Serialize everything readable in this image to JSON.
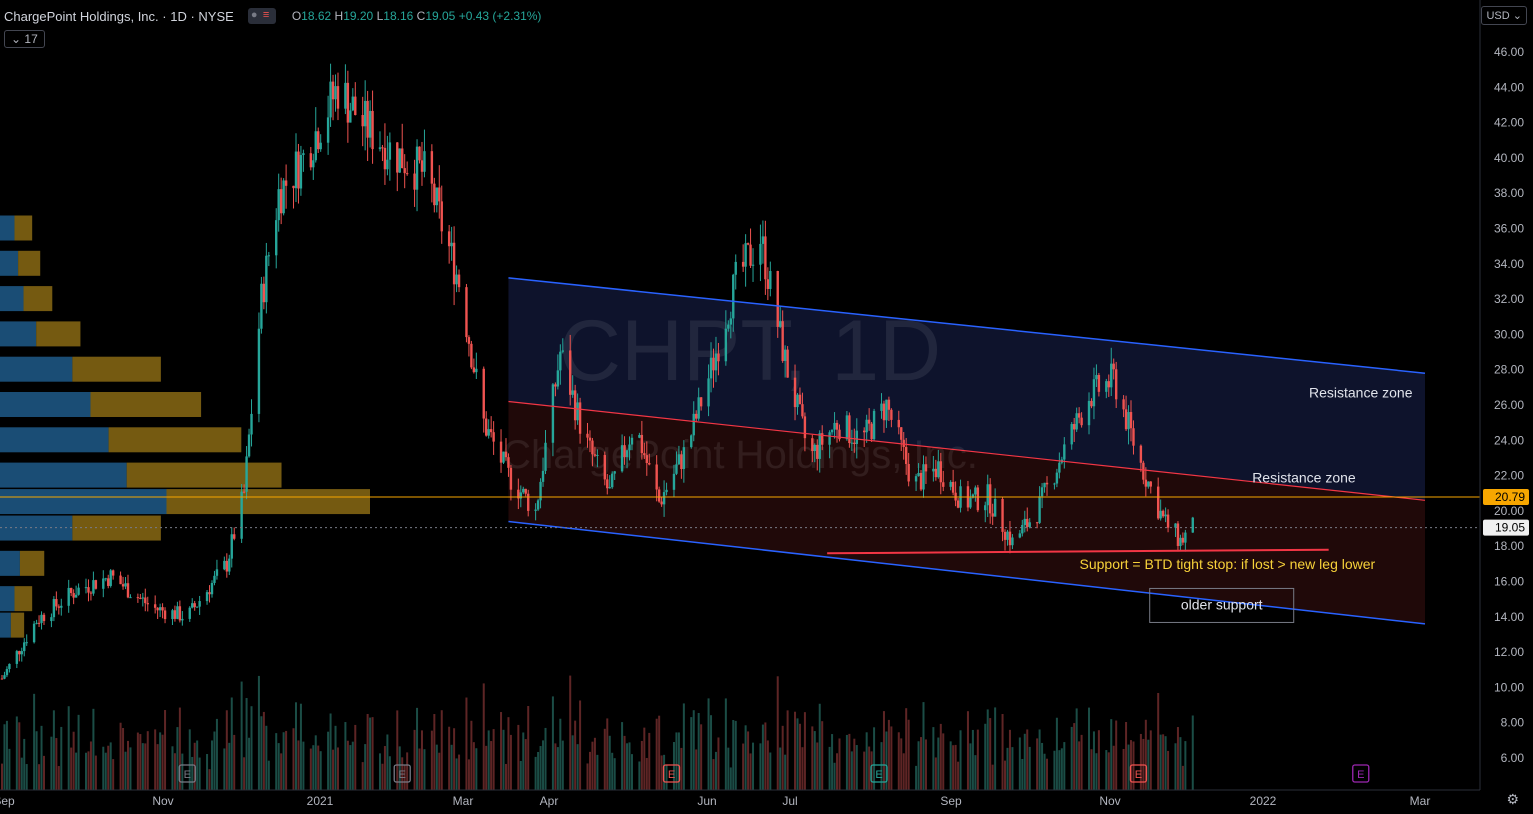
{
  "header": {
    "symbol_name": "ChargePoint Holdings, Inc.",
    "interval": "1D",
    "exchange": "NYSE",
    "open_label": "O",
    "open": "18.62",
    "high_label": "H",
    "high": "19.20",
    "low_label": "L",
    "low": "18.16",
    "close_label": "C",
    "close": "19.05",
    "change": "+0.43 (+2.31%)",
    "volume_indicator": "17"
  },
  "currency": "USD",
  "watermark": {
    "symbol": "CHPT, 1D",
    "name": "ChargePoint Holdings, Inc."
  },
  "colors": {
    "up": "#26a69a",
    "down": "#ef5350",
    "channel": "#2962ff",
    "support": "#f23645",
    "last_price": "#f7a600",
    "annotation": "#f7d23a",
    "bg": "#000000"
  },
  "chart_data": {
    "type": "candlestick",
    "x_axis_labels": [
      "Sep",
      "Nov",
      "2021",
      "Mar",
      "Apr",
      "Jun",
      "Jul",
      "Sep",
      "Nov",
      "2022",
      "Mar"
    ],
    "y_ticks": [
      "46.00",
      "44.00",
      "42.00",
      "40.00",
      "38.00",
      "36.00",
      "34.00",
      "32.00",
      "30.00",
      "28.00",
      "26.00",
      "24.00",
      "22.00",
      "20.00",
      "18.00",
      "16.00",
      "14.00",
      "12.00",
      "10.00",
      "8.00",
      "6.00"
    ],
    "ylim": [
      5,
      48
    ],
    "last_price_badge": "19.05",
    "resistance_price_badge": "20.79",
    "price_path": [
      [
        "2020-09-01",
        10.5
      ],
      [
        "2020-09-15",
        13.8
      ],
      [
        "2020-10-01",
        15.5
      ],
      [
        "2020-10-15",
        16.3
      ],
      [
        "2020-11-01",
        14.5
      ],
      [
        "2020-11-15",
        14.0
      ],
      [
        "2020-12-01",
        17.0
      ],
      [
        "2020-12-08",
        21.0
      ],
      [
        "2020-12-15",
        32.0
      ],
      [
        "2020-12-22",
        38.0
      ],
      [
        "2021-01-01",
        40.0
      ],
      [
        "2021-01-15",
        44.0
      ],
      [
        "2021-01-25",
        42.0
      ],
      [
        "2021-02-05",
        40.5
      ],
      [
        "2021-02-20",
        39.0
      ],
      [
        "2021-03-05",
        33.0
      ],
      [
        "2021-03-15",
        25.0
      ],
      [
        "2021-03-25",
        22.0
      ],
      [
        "2021-04-05",
        20.0
      ],
      [
        "2021-04-15",
        29.0
      ],
      [
        "2021-04-25",
        24.0
      ],
      [
        "2021-05-05",
        21.0
      ],
      [
        "2021-05-15",
        25.0
      ],
      [
        "2021-05-25",
        20.5
      ],
      [
        "2021-06-05",
        23.5
      ],
      [
        "2021-06-15",
        28.0
      ],
      [
        "2021-06-25",
        33.0
      ],
      [
        "2021-07-05",
        35.5
      ],
      [
        "2021-07-15",
        28.5
      ],
      [
        "2021-07-25",
        23.0
      ],
      [
        "2021-08-05",
        25.0
      ],
      [
        "2021-08-15",
        24.0
      ],
      [
        "2021-08-25",
        26.0
      ],
      [
        "2021-09-05",
        21.5
      ],
      [
        "2021-09-15",
        22.5
      ],
      [
        "2021-09-25",
        20.5
      ],
      [
        "2021-10-05",
        20.8
      ],
      [
        "2021-10-15",
        18.2
      ],
      [
        "2021-10-25",
        20.0
      ],
      [
        "2021-11-05",
        23.5
      ],
      [
        "2021-11-15",
        26.5
      ],
      [
        "2021-11-25",
        27.5
      ],
      [
        "2021-12-05",
        23.0
      ],
      [
        "2021-12-15",
        19.5
      ],
      [
        "2021-12-22",
        18.3
      ],
      [
        "2021-12-27",
        19.05
      ]
    ],
    "channel_upper": [
      [
        "2021-03-25",
        33.2
      ],
      [
        "2022-03-31",
        27.8
      ]
    ],
    "channel_lower": [
      [
        "2021-03-25",
        19.4
      ],
      [
        "2022-03-31",
        13.6
      ]
    ],
    "mid_line": [
      [
        "2021-03-25",
        26.2
      ],
      [
        "2022-03-31",
        20.6
      ]
    ],
    "support_line": [
      [
        "2021-08-01",
        17.6
      ],
      [
        "2022-02-20",
        17.8
      ]
    ],
    "resistance_level": 20.79,
    "volume_profile": [
      {
        "price": 36.0,
        "vol": 8
      },
      {
        "price": 34.0,
        "vol": 10
      },
      {
        "price": 32.0,
        "vol": 13
      },
      {
        "price": 30.0,
        "vol": 20
      },
      {
        "price": 28.0,
        "vol": 40
      },
      {
        "price": 26.0,
        "vol": 50
      },
      {
        "price": 24.0,
        "vol": 60
      },
      {
        "price": 22.0,
        "vol": 70
      },
      {
        "price": 20.5,
        "vol": 92
      },
      {
        "price": 19.0,
        "vol": 40
      },
      {
        "price": 17.0,
        "vol": 11
      },
      {
        "price": 15.0,
        "vol": 8
      },
      {
        "price": 13.5,
        "vol": 6
      }
    ],
    "annotations": [
      {
        "text": "Resistance zone",
        "price": 26.7,
        "date": "2022-03-05"
      },
      {
        "text": "Resistance zone",
        "price": 21.9,
        "date": "2022-02-10"
      },
      {
        "text": "Support = BTD tight stop: if lost > new leg lower",
        "price": 17.0,
        "date": "2022-01-10"
      },
      {
        "text": "older support",
        "price": 14.7,
        "date": "2022-01-15"
      }
    ],
    "earnings_markers": [
      {
        "date": "2020-11-15",
        "type": "E"
      },
      {
        "date": "2021-02-10",
        "type": "E"
      },
      {
        "date": "2021-05-30",
        "type": "E"
      },
      {
        "date": "2021-08-22",
        "type": "E"
      },
      {
        "date": "2021-12-05",
        "type": "E"
      },
      {
        "date": "2022-03-05",
        "type": "E"
      }
    ]
  }
}
